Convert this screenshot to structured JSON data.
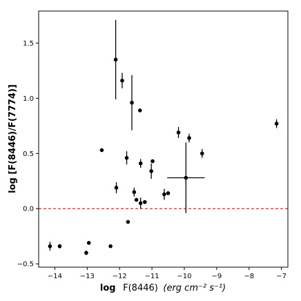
{
  "chart_data": {
    "type": "scatter",
    "xlabel_prefix": "log",
    "xlabel_mid": "F(8446)",
    "xlabel_units": "(erg cm⁻² s⁻¹)",
    "ylabel": "log [F(8446)/F(7774)]",
    "xlim": [
      -14.5,
      -6.8
    ],
    "ylim": [
      -0.53,
      1.79
    ],
    "x_ticks": [
      -14,
      -13,
      -12,
      -11,
      -10,
      -9,
      -8,
      -7
    ],
    "y_ticks": [
      -0.5,
      0.0,
      0.5,
      1.0,
      1.5
    ],
    "x_tick_labels": [
      "−14",
      "−13",
      "−12",
      "−11",
      "−10",
      "−9",
      "−8",
      "−7"
    ],
    "y_tick_labels": [
      "−0.5",
      "0.0",
      "0.5",
      "1.0",
      "1.5"
    ],
    "reference_line": {
      "y": 0.0,
      "color": "#d62728",
      "style": "dashed"
    },
    "marker_color": "#000000",
    "points": [
      {
        "x": -14.15,
        "y": -0.34,
        "yerr": 0.04,
        "xerr": 0
      },
      {
        "x": -13.85,
        "y": -0.34,
        "yerr": 0.02,
        "xerr": 0
      },
      {
        "x": -13.03,
        "y": -0.4,
        "yerr": 0.02,
        "xerr": 0
      },
      {
        "x": -12.95,
        "y": -0.31,
        "yerr": 0,
        "xerr": 0
      },
      {
        "x": -12.55,
        "y": 0.53,
        "yerr": 0,
        "xerr": 0
      },
      {
        "x": -12.28,
        "y": -0.34,
        "yerr": 0,
        "xerr": 0
      },
      {
        "x": -12.12,
        "y": 1.35,
        "yerr": 0.36,
        "xerr": 0
      },
      {
        "x": -12.1,
        "y": 0.19,
        "yerr": 0.05,
        "xerr": 0
      },
      {
        "x": -11.92,
        "y": 1.16,
        "yerr": 0.07,
        "xerr": 0
      },
      {
        "x": -11.78,
        "y": 0.46,
        "yerr": 0.06,
        "xerr": 0
      },
      {
        "x": -11.74,
        "y": -0.12,
        "yerr": 0,
        "xerr": 0
      },
      {
        "x": -11.62,
        "y": 0.96,
        "yerr": 0.25,
        "xerr": 0
      },
      {
        "x": -11.55,
        "y": 0.15,
        "yerr": 0.04,
        "xerr": 0
      },
      {
        "x": -11.48,
        "y": 0.08,
        "yerr": 0,
        "xerr": 0
      },
      {
        "x": -11.37,
        "y": 0.89,
        "yerr": 0,
        "xerr": 0
      },
      {
        "x": -11.35,
        "y": 0.41,
        "yerr": 0.04,
        "xerr": 0
      },
      {
        "x": -11.35,
        "y": 0.05,
        "yerr": 0.05,
        "xerr": 0
      },
      {
        "x": -11.22,
        "y": 0.06,
        "yerr": 0,
        "xerr": 0
      },
      {
        "x": -11.02,
        "y": 0.34,
        "yerr": 0.07,
        "xerr": 0
      },
      {
        "x": -10.98,
        "y": 0.43,
        "yerr": 0,
        "xerr": 0
      },
      {
        "x": -10.62,
        "y": 0.13,
        "yerr": 0.05,
        "xerr": 0
      },
      {
        "x": -10.5,
        "y": 0.14,
        "yerr": 0,
        "xerr": 0
      },
      {
        "x": -10.18,
        "y": 0.69,
        "yerr": 0.05,
        "xerr": 0
      },
      {
        "x": -9.95,
        "y": 0.28,
        "yerr": 0.32,
        "xerr": 0.58
      },
      {
        "x": -9.85,
        "y": 0.64,
        "yerr": 0.04,
        "xerr": 0
      },
      {
        "x": -9.45,
        "y": 0.5,
        "yerr": 0.04,
        "xerr": 0
      },
      {
        "x": -7.15,
        "y": 0.77,
        "yerr": 0.04,
        "xerr": 0
      }
    ]
  }
}
